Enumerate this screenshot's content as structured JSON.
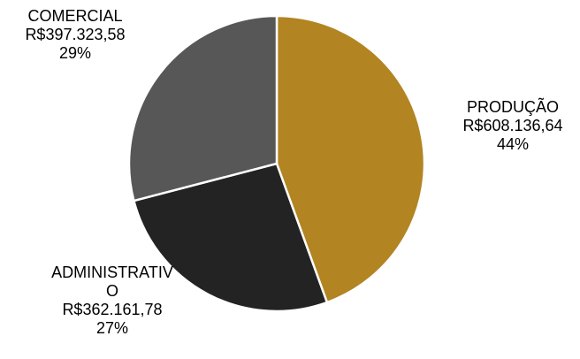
{
  "chart_data": {
    "type": "pie",
    "title": "",
    "slices": [
      {
        "label": "PRODUÇÃO",
        "value_text": "R$608.136,64",
        "percent_text": "44%",
        "value": 608136.64,
        "color": "#b28422"
      },
      {
        "label": "ADMINISTRATIV\nO",
        "label_line1": "ADMINISTRATIV",
        "label_line2": "O",
        "value_text": "R$362.161,78",
        "percent_text": "27%",
        "value": 362161.78,
        "color": "#232323"
      },
      {
        "label": "COMERCIAL",
        "value_text": "R$397.323,58",
        "percent_text": "29%",
        "value": 397323.58,
        "color": "#575757"
      }
    ],
    "start_angle_deg": 0,
    "direction": "clockwise",
    "slice_border_color": "#ffffff",
    "legend": "none",
    "data_labels": "outside"
  }
}
